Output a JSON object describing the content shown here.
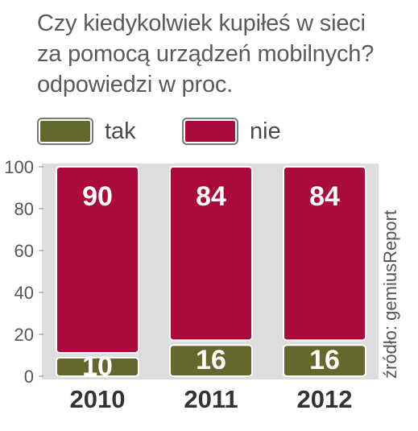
{
  "title_lines": [
    "Czy kiedykolwiek kupiłeś w sieci",
    "za pomocą urządzeń mobilnych?",
    "odpowiedzi w proc."
  ],
  "source": "źródło: gemiusReport",
  "colors": {
    "tak": "#65682c",
    "nie": "#ab0a3c",
    "grid": "#dddddd"
  },
  "chart_data": {
    "type": "bar",
    "stacked": true,
    "title": "Czy kiedykolwiek kupiłeś w sieci za pomocą urządzeń mobilnych?",
    "subtitle": "odpowiedzi w proc.",
    "categories": [
      "2010",
      "2011",
      "2012"
    ],
    "series": [
      {
        "name": "tak",
        "values": [
          10,
          16,
          16
        ]
      },
      {
        "name": "nie",
        "values": [
          90,
          84,
          84
        ]
      }
    ],
    "yticks": [
      0,
      20,
      40,
      60,
      80,
      100
    ],
    "ylim": [
      0,
      100
    ],
    "legend": "top",
    "grid": false
  }
}
